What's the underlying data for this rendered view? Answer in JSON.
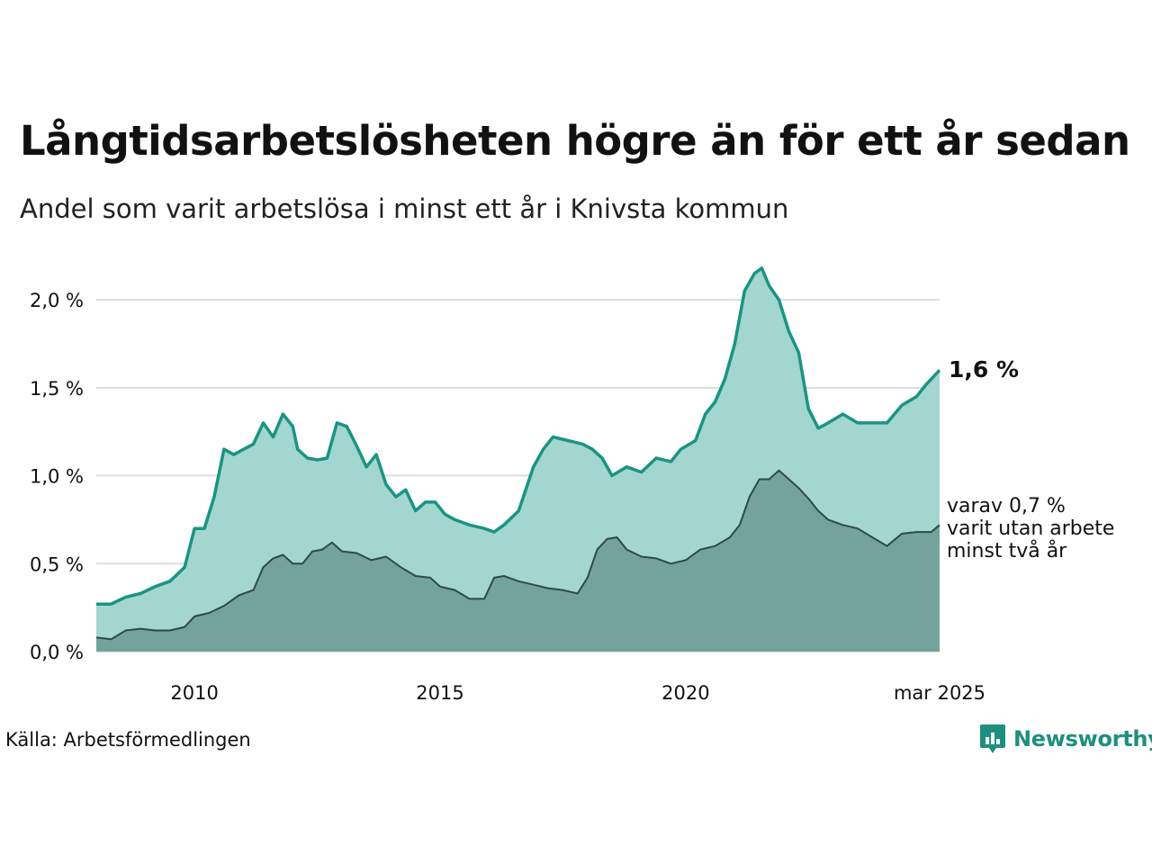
{
  "title": "Långtidsarbetslösheten högre än för ett år sedan",
  "subtitle": "Andel som varit arbetslösa i minst ett år i Knivsta kommun",
  "source": "Källa: Arbetsförmedlingen",
  "brand": {
    "name": "Newsworthy"
  },
  "end_label": "1,6 %",
  "sub_label": [
    "varav 0,7 %",
    "varit utan arbete",
    "minst två år"
  ],
  "colors": {
    "upper_line": "#1a9483",
    "upper_fill": "#a3d6cf",
    "lower_line": "#2f4a46",
    "lower_fill": "#709e97",
    "grid": "#dddddd"
  },
  "chart_data": {
    "type": "area",
    "ylim": [
      0,
      2.2
    ],
    "y_ticks": [
      {
        "value": 0.0,
        "label": "0,0 %"
      },
      {
        "value": 0.5,
        "label": "0,5 %"
      },
      {
        "value": 1.0,
        "label": "1,0 %"
      },
      {
        "value": 1.5,
        "label": "1,5 %"
      },
      {
        "value": 2.0,
        "label": "2,0 %"
      }
    ],
    "x_ticks": [
      {
        "value": 2010.0,
        "label": "2010"
      },
      {
        "value": 2015.0,
        "label": "2015"
      },
      {
        "value": 2020.0,
        "label": "2020"
      },
      {
        "value": 2025.17,
        "label": "mar 2025"
      }
    ],
    "xlim": [
      2008.0,
      2025.17
    ],
    "series": [
      {
        "role": "upper",
        "points": [
          [
            2008.0,
            0.27
          ],
          [
            2008.3,
            0.27
          ],
          [
            2008.6,
            0.31
          ],
          [
            2008.9,
            0.33
          ],
          [
            2009.2,
            0.37
          ],
          [
            2009.5,
            0.4
          ],
          [
            2009.8,
            0.48
          ],
          [
            2010.0,
            0.7
          ],
          [
            2010.2,
            0.7
          ],
          [
            2010.4,
            0.88
          ],
          [
            2010.6,
            1.15
          ],
          [
            2010.8,
            1.12
          ],
          [
            2011.0,
            1.15
          ],
          [
            2011.2,
            1.18
          ],
          [
            2011.4,
            1.3
          ],
          [
            2011.6,
            1.22
          ],
          [
            2011.8,
            1.35
          ],
          [
            2012.0,
            1.28
          ],
          [
            2012.1,
            1.15
          ],
          [
            2012.3,
            1.1
          ],
          [
            2012.5,
            1.09
          ],
          [
            2012.7,
            1.1
          ],
          [
            2012.9,
            1.3
          ],
          [
            2013.1,
            1.28
          ],
          [
            2013.3,
            1.17
          ],
          [
            2013.5,
            1.05
          ],
          [
            2013.7,
            1.12
          ],
          [
            2013.9,
            0.95
          ],
          [
            2014.1,
            0.88
          ],
          [
            2014.3,
            0.92
          ],
          [
            2014.5,
            0.8
          ],
          [
            2014.7,
            0.85
          ],
          [
            2014.9,
            0.85
          ],
          [
            2015.1,
            0.78
          ],
          [
            2015.3,
            0.75
          ],
          [
            2015.6,
            0.72
          ],
          [
            2015.9,
            0.7
          ],
          [
            2016.1,
            0.68
          ],
          [
            2016.3,
            0.72
          ],
          [
            2016.6,
            0.8
          ],
          [
            2016.9,
            1.05
          ],
          [
            2017.1,
            1.15
          ],
          [
            2017.3,
            1.22
          ],
          [
            2017.6,
            1.2
          ],
          [
            2017.9,
            1.18
          ],
          [
            2018.1,
            1.15
          ],
          [
            2018.3,
            1.1
          ],
          [
            2018.5,
            1.0
          ],
          [
            2018.8,
            1.05
          ],
          [
            2019.1,
            1.02
          ],
          [
            2019.4,
            1.1
          ],
          [
            2019.7,
            1.08
          ],
          [
            2019.9,
            1.15
          ],
          [
            2020.2,
            1.2
          ],
          [
            2020.4,
            1.35
          ],
          [
            2020.6,
            1.42
          ],
          [
            2020.8,
            1.55
          ],
          [
            2021.0,
            1.75
          ],
          [
            2021.2,
            2.05
          ],
          [
            2021.4,
            2.15
          ],
          [
            2021.55,
            2.18
          ],
          [
            2021.7,
            2.08
          ],
          [
            2021.9,
            2.0
          ],
          [
            2022.1,
            1.82
          ],
          [
            2022.3,
            1.7
          ],
          [
            2022.5,
            1.38
          ],
          [
            2022.7,
            1.27
          ],
          [
            2022.9,
            1.3
          ],
          [
            2023.2,
            1.35
          ],
          [
            2023.5,
            1.3
          ],
          [
            2023.8,
            1.3
          ],
          [
            2024.1,
            1.3
          ],
          [
            2024.4,
            1.4
          ],
          [
            2024.7,
            1.45
          ],
          [
            2024.9,
            1.52
          ],
          [
            2025.17,
            1.6
          ]
        ]
      },
      {
        "role": "lower",
        "points": [
          [
            2008.0,
            0.08
          ],
          [
            2008.3,
            0.07
          ],
          [
            2008.6,
            0.12
          ],
          [
            2008.9,
            0.13
          ],
          [
            2009.2,
            0.12
          ],
          [
            2009.5,
            0.12
          ],
          [
            2009.8,
            0.14
          ],
          [
            2010.0,
            0.2
          ],
          [
            2010.3,
            0.22
          ],
          [
            2010.6,
            0.26
          ],
          [
            2010.9,
            0.32
          ],
          [
            2011.2,
            0.35
          ],
          [
            2011.4,
            0.48
          ],
          [
            2011.6,
            0.53
          ],
          [
            2011.8,
            0.55
          ],
          [
            2012.0,
            0.5
          ],
          [
            2012.2,
            0.5
          ],
          [
            2012.4,
            0.57
          ],
          [
            2012.6,
            0.58
          ],
          [
            2012.8,
            0.62
          ],
          [
            2013.0,
            0.57
          ],
          [
            2013.3,
            0.56
          ],
          [
            2013.6,
            0.52
          ],
          [
            2013.9,
            0.54
          ],
          [
            2014.2,
            0.48
          ],
          [
            2014.5,
            0.43
          ],
          [
            2014.8,
            0.42
          ],
          [
            2015.0,
            0.37
          ],
          [
            2015.3,
            0.35
          ],
          [
            2015.6,
            0.3
          ],
          [
            2015.9,
            0.3
          ],
          [
            2016.1,
            0.42
          ],
          [
            2016.3,
            0.43
          ],
          [
            2016.6,
            0.4
          ],
          [
            2016.9,
            0.38
          ],
          [
            2017.2,
            0.36
          ],
          [
            2017.5,
            0.35
          ],
          [
            2017.8,
            0.33
          ],
          [
            2018.0,
            0.42
          ],
          [
            2018.2,
            0.58
          ],
          [
            2018.4,
            0.64
          ],
          [
            2018.6,
            0.65
          ],
          [
            2018.8,
            0.58
          ],
          [
            2019.1,
            0.54
          ],
          [
            2019.4,
            0.53
          ],
          [
            2019.7,
            0.5
          ],
          [
            2020.0,
            0.52
          ],
          [
            2020.3,
            0.58
          ],
          [
            2020.6,
            0.6
          ],
          [
            2020.9,
            0.65
          ],
          [
            2021.1,
            0.72
          ],
          [
            2021.3,
            0.88
          ],
          [
            2021.5,
            0.98
          ],
          [
            2021.7,
            0.98
          ],
          [
            2021.9,
            1.03
          ],
          [
            2022.1,
            0.98
          ],
          [
            2022.3,
            0.93
          ],
          [
            2022.5,
            0.87
          ],
          [
            2022.7,
            0.8
          ],
          [
            2022.9,
            0.75
          ],
          [
            2023.2,
            0.72
          ],
          [
            2023.5,
            0.7
          ],
          [
            2023.8,
            0.65
          ],
          [
            2024.1,
            0.6
          ],
          [
            2024.4,
            0.67
          ],
          [
            2024.7,
            0.68
          ],
          [
            2025.0,
            0.68
          ],
          [
            2025.17,
            0.72
          ]
        ]
      }
    ]
  }
}
